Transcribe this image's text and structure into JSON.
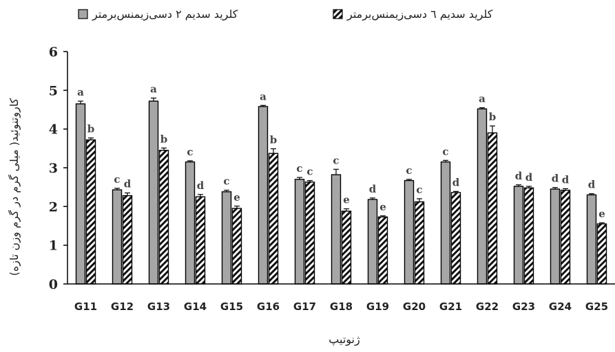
{
  "chart_data": {
    "type": "bar",
    "xlabel": "ژنوتیپ",
    "ylabel": "کاروتنوئید( میلی گرم در گرم وزن تازه)",
    "ylim": [
      0,
      6
    ],
    "yticks": [
      0,
      1,
      2,
      3,
      4,
      5,
      6
    ],
    "grid": false,
    "legend_position": "top",
    "categories": [
      "G11",
      "G12",
      "G13",
      "G14",
      "G15",
      "G16",
      "G17",
      "G18",
      "G19",
      "G20",
      "G21",
      "G22",
      "G23",
      "G24",
      "G25"
    ],
    "series": [
      {
        "name": "کلرید سدیم ۲ دسی‌زیمنس‌برمتر",
        "pattern": "solid",
        "color": "#a6a6a6",
        "values": [
          4.65,
          2.43,
          4.72,
          3.15,
          2.38,
          4.58,
          2.7,
          2.82,
          2.18,
          2.67,
          3.15,
          4.52,
          2.52,
          2.45,
          2.3
        ],
        "errors": [
          0.07,
          0.04,
          0.08,
          0.03,
          0.04,
          0.03,
          0.05,
          0.14,
          0.04,
          0.03,
          0.04,
          0.03,
          0.04,
          0.04,
          0.03
        ],
        "letters": [
          "a",
          "c",
          "a",
          "c",
          "c",
          "a",
          "c",
          "c",
          "d",
          "c",
          "c",
          "a",
          "d",
          "d",
          "d"
        ]
      },
      {
        "name": "کلرید سدیم ٦ دسی‌زیمنس‌برمتر",
        "pattern": "hatched",
        "color": "#ffffff",
        "values": [
          3.72,
          2.28,
          3.45,
          2.25,
          1.95,
          3.37,
          2.63,
          1.88,
          1.73,
          2.12,
          2.36,
          3.9,
          2.48,
          2.42,
          1.55
        ],
        "errors": [
          0.05,
          0.07,
          0.06,
          0.06,
          0.06,
          0.12,
          0.04,
          0.06,
          0.03,
          0.08,
          0.03,
          0.18,
          0.04,
          0.04,
          0.03
        ],
        "letters": [
          "b",
          "d",
          "b",
          "d",
          "e",
          "b",
          "c",
          "e",
          "e",
          "c",
          "d",
          "b",
          "d",
          "d",
          "e"
        ]
      }
    ]
  }
}
